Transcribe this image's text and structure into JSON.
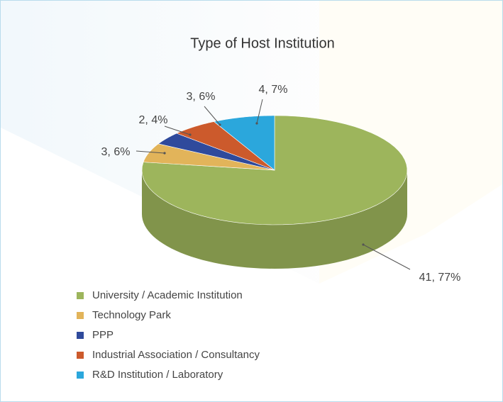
{
  "chart_data": {
    "type": "pie3d",
    "title": "Type of Host Institution",
    "categories": [
      "University / Academic Institution",
      "Technology Park",
      "PPP",
      "Industrial Association / Consultancy",
      "R&D Institution / Laboratory"
    ],
    "values": [
      41,
      3,
      2,
      3,
      4
    ],
    "value_labels": [
      "41, 77%",
      "3, 6%",
      "2, 4%",
      "3, 6%",
      "4, 7%"
    ],
    "colors": [
      "#9db55c",
      "#e2b45a",
      "#2f4a9c",
      "#cc5a2c",
      "#2ba7dc"
    ],
    "legend": "bottom-left"
  }
}
